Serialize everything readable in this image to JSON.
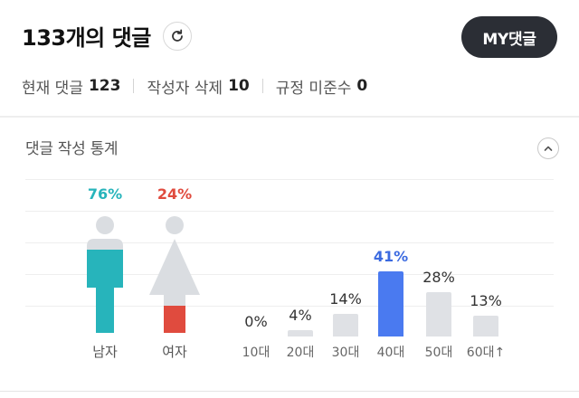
{
  "header": {
    "title": "133개의 댓글",
    "my_button_label": "MY댓글"
  },
  "stats": [
    {
      "label": "현재 댓글",
      "value": "123"
    },
    {
      "label": "작성자 삭제",
      "value": "10"
    },
    {
      "label": "규정 미준수",
      "value": "0"
    }
  ],
  "panel": {
    "title": "댓글 작성 통계"
  },
  "colors": {
    "male": "#27b4bb",
    "female": "#e04b3e",
    "highlight": "#4a7af0",
    "bar": "#dfe1e5"
  },
  "chart_data": {
    "type": "bar",
    "title": "",
    "gender": [
      {
        "label": "남자",
        "percent_text": "76%",
        "value": 76
      },
      {
        "label": "여자",
        "percent_text": "24%",
        "value": 24
      }
    ],
    "categories": [
      "10대",
      "20대",
      "30대",
      "40대",
      "50대",
      "60대↑"
    ],
    "values": [
      0,
      4,
      14,
      41,
      28,
      13
    ],
    "value_labels": [
      "0%",
      "4%",
      "14%",
      "41%",
      "28%",
      "13%"
    ],
    "highlight_index": 3,
    "ylim": [
      0,
      41
    ]
  }
}
